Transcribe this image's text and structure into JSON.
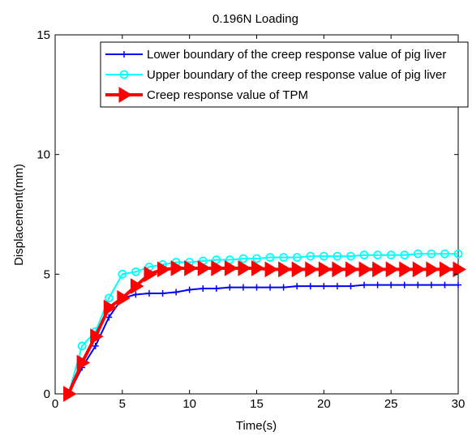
{
  "chart_data": {
    "type": "line",
    "title": "0.196N Loading",
    "xlabel": "Time(s)",
    "ylabel": "Displacement(mm)",
    "xlim": [
      0,
      30
    ],
    "ylim": [
      0,
      15
    ],
    "xticks": [
      0,
      5,
      10,
      15,
      20,
      25,
      30
    ],
    "yticks": [
      0,
      5,
      10,
      15
    ],
    "grid": false,
    "legend_position": "top",
    "x": [
      1,
      2,
      3,
      4,
      5,
      6,
      7,
      8,
      9,
      10,
      11,
      12,
      13,
      14,
      15,
      16,
      17,
      18,
      19,
      20,
      21,
      22,
      23,
      24,
      25,
      26,
      27,
      28,
      29,
      30
    ],
    "series": [
      {
        "name": "Lower boundary of the creep response value of pig liver",
        "color": "#0000ff",
        "marker": "plus",
        "values": [
          0.0,
          1.1,
          2.0,
          3.2,
          4.0,
          4.15,
          4.2,
          4.2,
          4.25,
          4.35,
          4.4,
          4.4,
          4.45,
          4.45,
          4.45,
          4.45,
          4.45,
          4.5,
          4.5,
          4.5,
          4.5,
          4.5,
          4.55,
          4.55,
          4.55,
          4.55,
          4.55,
          4.55,
          4.55,
          4.55
        ]
      },
      {
        "name": "Upper boundary of the creep response value of pig liver",
        "color": "#00ffff",
        "marker": "circle",
        "values": [
          0.0,
          2.0,
          2.6,
          4.0,
          5.0,
          5.1,
          5.3,
          5.4,
          5.5,
          5.5,
          5.55,
          5.6,
          5.6,
          5.65,
          5.65,
          5.7,
          5.7,
          5.7,
          5.75,
          5.75,
          5.75,
          5.75,
          5.8,
          5.8,
          5.8,
          5.8,
          5.85,
          5.85,
          5.85,
          5.85
        ]
      },
      {
        "name": "Creep response value of TPM",
        "color": "#ff0000",
        "marker": "triangle-right",
        "values": [
          0.0,
          1.3,
          2.4,
          3.6,
          4.0,
          4.5,
          5.0,
          5.2,
          5.25,
          5.25,
          5.25,
          5.25,
          5.25,
          5.25,
          5.25,
          5.2,
          5.2,
          5.2,
          5.2,
          5.2,
          5.2,
          5.2,
          5.2,
          5.2,
          5.2,
          5.2,
          5.2,
          5.2,
          5.2,
          5.2
        ]
      }
    ]
  }
}
